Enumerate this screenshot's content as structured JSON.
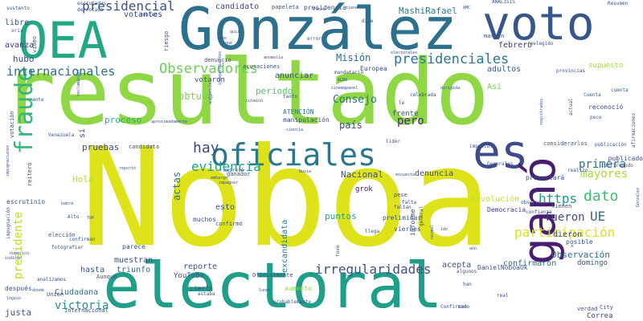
{
  "words": [
    {
      "text": "resultado",
      "color": "#8fd744"
    },
    {
      "text": "Noboa",
      "color": "#dde318"
    },
    {
      "text": "González",
      "color": "#2d708e"
    },
    {
      "text": "electoral",
      "color": "#1f9e89"
    },
    {
      "text": "OEA",
      "color": "#22a884"
    },
    {
      "text": "voto",
      "color": "#39568c"
    },
    {
      "text": "es",
      "color": "#3e4a89"
    },
    {
      "text": "ganó",
      "color": "#481f70"
    },
    {
      "text": "oficiales",
      "color": "#2a788e"
    },
    {
      "text": "fraude",
      "color": "#35b779"
    },
    {
      "text": "presidenciales",
      "color": "#2a788e"
    },
    {
      "text": "Observadores",
      "color": "#6ccd5a"
    },
    {
      "text": "internacionales",
      "color": "#2f6c8e"
    },
    {
      "text": "irregularidades",
      "color": "#3b528b"
    },
    {
      "text": "participación",
      "color": "#d8e219"
    },
    {
      "text": "presidencial",
      "color": "#3b528b"
    },
    {
      "text": "evidencia",
      "color": "#1fa088"
    },
    {
      "text": "hay",
      "color": "#3e4989"
    },
    {
      "text": "dato",
      "color": "#3dbc74"
    },
    {
      "text": "primera",
      "color": "#2c728e"
    },
    {
      "text": "https",
      "color": "#1f9a8a"
    },
    {
      "text": "mayores",
      "color": "#a8db34"
    },
    {
      "text": "UE",
      "color": "#31688e"
    },
    {
      "text": "presidente",
      "color": "#bddf26"
    },
    {
      "text": "actas",
      "color": "#2a788e"
    },
    {
      "text": "victoria",
      "color": "#21918c"
    },
    {
      "text": "fueron",
      "color": "#3e4a89"
    },
    {
      "text": "pero",
      "color": "#482878"
    },
    {
      "text": "Consejo",
      "color": "#2c728e"
    },
    {
      "text": "Misión",
      "color": "#31688e"
    },
    {
      "text": "MashiRafael",
      "color": "#2a788e"
    },
    {
      "text": "candidato",
      "color": "#404688"
    },
    {
      "text": "puntos",
      "color": "#20a386"
    },
    {
      "text": "Nacional",
      "color": "#3b528b"
    },
    {
      "text": "Observación",
      "color": "#2d708e"
    },
    {
      "text": "confirmaron",
      "color": "#2f6c8e"
    },
    {
      "text": "dieron",
      "color": "#414487"
    },
    {
      "text": "proceso",
      "color": "#29af7f"
    },
    {
      "text": "pruebas",
      "color": "#3f4889"
    },
    {
      "text": "país",
      "color": "#3e4989"
    },
    {
      "text": "hubo",
      "color": "#3e4989"
    },
    {
      "text": "libre",
      "color": "#3b528b"
    },
    {
      "text": "avanza",
      "color": "#46337e"
    },
    {
      "text": "votantes",
      "color": "#3e4a89"
    },
    {
      "text": "Hola",
      "color": "#b5de2b"
    },
    {
      "text": "febrero",
      "color": "#463480"
    },
    {
      "text": "adultos",
      "color": "#38598c"
    },
    {
      "text": "muestran",
      "color": "#3b528b"
    },
    {
      "text": "excandidata",
      "color": "#2a788e"
    },
    {
      "text": "denuncia",
      "color": "#3e4989"
    },
    {
      "text": "justa",
      "color": "#3b528b"
    },
    {
      "text": "hasta",
      "color": "#3b528b"
    },
    {
      "text": "triunfo",
      "color": "#31688e"
    },
    {
      "text": "Ciudadana",
      "color": "#2c728e"
    },
    {
      "text": "reporte",
      "color": "#3b528b"
    },
    {
      "text": "esto",
      "color": "#3b528b"
    },
    {
      "text": "si",
      "color": "#3e4989"
    },
    {
      "text": "obtuvo",
      "color": "#7ad151"
    },
    {
      "text": "periodo",
      "color": "#52c569"
    },
    {
      "text": "anunciar",
      "color": "#3b528b"
    },
    {
      "text": "votaron",
      "color": "#3b528b"
    },
    {
      "text": "grok",
      "color": "#481668"
    },
    {
      "text": "publicado",
      "color": "#3e4989"
    },
    {
      "text": "reconoció",
      "color": "#3e4989"
    },
    {
      "text": "Revolución",
      "color": "#bddf26"
    },
    {
      "text": "Democracia",
      "color": "#414487"
    },
    {
      "text": "ATENCIÓN",
      "color": "#2a788e"
    },
    {
      "text": "manipulación",
      "color": "#3e4a89"
    },
    {
      "text": "Así",
      "color": "#7ad151"
    },
    {
      "text": "Europea",
      "color": "#3b528b"
    },
    {
      "text": "supuesto",
      "color": "#a5db36"
    },
    {
      "text": "YouTube",
      "color": "#3b528b"
    },
    {
      "text": "cierto",
      "color": "#3b528b"
    },
    {
      "text": "aumento",
      "color": "#8fd744"
    },
    {
      "text": "Correa",
      "color": "#3e4989"
    },
    {
      "text": "acepta",
      "color": "#3b528b"
    },
    {
      "text": "domingo",
      "color": "#3b528b"
    },
    {
      "text": "DanielNoboaOk",
      "color": "#3b528b"
    },
    {
      "text": "frente",
      "color": "#3b528b"
    },
    {
      "text": "posible",
      "color": "#3b528b"
    },
    {
      "text": "elección",
      "color": "#3b528b"
    },
    {
      "text": "ganador",
      "color": "#3b528b"
    },
    {
      "text": "expresó",
      "color": "#3b528b"
    },
    {
      "text": "preliminar",
      "color": "#3b528b"
    },
    {
      "text": "viernes",
      "color": "#3b528b"
    },
    {
      "text": "informe",
      "color": "#3b528b"
    },
    {
      "text": "tienen",
      "color": "#3b528b"
    },
    {
      "text": "Aunque",
      "color": "#3b528b"
    },
    {
      "text": "parece",
      "color": "#3b528b"
    },
    {
      "text": "muchos",
      "color": "#3b528b"
    },
    {
      "text": "confirmó",
      "color": "#3b528b"
    },
    {
      "text": "escrutinio",
      "color": "#3b528b"
    },
    {
      "text": "después",
      "color": "#3b528b"
    },
    {
      "text": "Unión",
      "color": "#3b528b"
    },
    {
      "text": "internacional",
      "color": "#3b528b"
    },
    {
      "text": "verdad",
      "color": "#3b528b"
    },
    {
      "text": "City",
      "color": "#3b528b"
    },
    {
      "text": "votación",
      "color": "#3b528b"
    },
    {
      "text": "reiteró",
      "color": "#3b528b"
    },
    {
      "text": "denuncio",
      "color": "#3b528b"
    },
    {
      "text": "acusaciones",
      "color": "#3b528b"
    },
    {
      "text": "presidencia",
      "color": "#3b528b"
    },
    {
      "text": "papeleta",
      "color": "#3b528b"
    },
    {
      "text": "conteo",
      "color": "#3b528b"
    },
    {
      "text": "riesgo",
      "color": "#3b528b"
    },
    {
      "text": "sustento",
      "color": "#3b528b"
    },
    {
      "text": "tanto",
      "color": "#3b528b"
    },
    {
      "text": "mandatario",
      "color": "#3b528b"
    },
    {
      "text": "provincias",
      "color": "#3b528b"
    },
    {
      "text": "reelegido",
      "color": "#3b528b"
    },
    {
      "text": "margen",
      "color": "#3b528b"
    },
    {
      "text": "celebrada",
      "color": "#3b528b"
    },
    {
      "text": "considerarlos",
      "color": "#3b528b"
    },
    {
      "text": "publicación",
      "color": "#3b528b"
    },
    {
      "text": "confirmando",
      "color": "#3b528b"
    },
    {
      "text": "Generales",
      "color": "#3b528b"
    },
    {
      "text": "candidata",
      "color": "#3b528b"
    },
    {
      "text": "pese",
      "color": "#3b528b"
    },
    {
      "text": "confirman",
      "color": "#3b528b"
    },
    {
      "text": "falta",
      "color": "#3b528b"
    },
    {
      "text": "faltan",
      "color": "#3b528b"
    },
    {
      "text": "fotografiar",
      "color": "#3b528b"
    },
    {
      "text": "analizamos",
      "color": "#3b528b"
    },
    {
      "text": "Confirmado",
      "color": "#3b528b"
    },
    {
      "text": "cnn",
      "color": "#3b528b"
    },
    {
      "text": "probablemente",
      "color": "#3b528b"
    },
    {
      "text": "Oficialmente",
      "color": "#3b528b"
    },
    {
      "text": "estaba",
      "color": "#3b528b"
    },
    {
      "text": "algunos",
      "color": "#3b528b"
    },
    {
      "text": "llega",
      "color": "#3b528b"
    },
    {
      "text": "observó",
      "color": "#3b528b"
    },
    {
      "text": "confianza",
      "color": "#3b528b"
    },
    {
      "text": "presentará",
      "color": "#3b528b"
    },
    {
      "text": "realizo",
      "color": "#3b528b"
    },
    {
      "text": "Cuenta",
      "color": "#3b528b"
    },
    {
      "text": "cuenta",
      "color": "#3b528b"
    },
    {
      "text": "Resumen",
      "color": "#3b528b"
    },
    {
      "text": "ANÁLISIS",
      "color": "#3b528b"
    },
    {
      "text": "impagnar",
      "color": "#3b528b"
    },
    {
      "text": "embargo",
      "color": "#3b528b"
    },
    {
      "text": "reportó",
      "color": "#3b528b"
    },
    {
      "text": "Rusia",
      "color": "#3b528b"
    },
    {
      "text": "Venezuela",
      "color": "#3b528b"
    },
    {
      "text": "Alto",
      "color": "#3b528b"
    },
    {
      "text": "impugnación",
      "color": "#3b528b"
    },
    {
      "text": "culminó",
      "color": "#3b528b"
    },
    {
      "text": "Fecha",
      "color": "#3b528b"
    },
    {
      "text": "lunes",
      "color": "#3b528b"
    },
    {
      "text": "escrutadas",
      "color": "#3b528b"
    },
    {
      "text": "derrotada",
      "color": "#3b528b"
    },
    {
      "text": "dice",
      "color": "#3b528b"
    },
    {
      "text": "error",
      "color": "#3b528b"
    },
    {
      "text": "anomalía",
      "color": "#3b528b"
    },
    {
      "text": "aproximadamente",
      "color": "#3b528b"
    },
    {
      "text": "Gonzalez",
      "color": "#3b528b"
    },
    {
      "text": "real",
      "color": "#3b528b"
    },
    {
      "text": "general",
      "color": "#3b528b"
    },
    {
      "text": "tuvo",
      "color": "#3b528b"
    },
    {
      "text": "registrados",
      "color": "#3b528b"
    },
    {
      "text": "lider",
      "color": "#3b528b"
    },
    {
      "text": "han",
      "color": "#3b528b"
    },
    {
      "text": "ante",
      "color": "#3b528b"
    },
    {
      "text": "orix",
      "color": "#3b528b"
    },
    {
      "text": "ALBA",
      "color": "#3b528b"
    },
    {
      "text": "dirigida",
      "color": "#3b528b"
    },
    {
      "text": "afirmaciones",
      "color": "#3b528b"
    },
    {
      "text": "actual",
      "color": "#3b528b"
    },
    {
      "text": "electorales",
      "color": "#3b528b"
    },
    {
      "text": "AMC",
      "color": "#3b528b"
    },
    {
      "text": "tiene",
      "color": "#3b528b"
    },
    {
      "text": "quiz",
      "color": "#3b528b"
    },
    {
      "text": "video",
      "color": "#3b528b"
    },
    {
      "text": "sino",
      "color": "#3b528b"
    },
    {
      "text": "ciencia",
      "color": "#3b528b"
    },
    {
      "text": "poco",
      "color": "#3b528b"
    },
    {
      "text": "habrá",
      "color": "#3b528b"
    },
    {
      "text": "impugnaciones",
      "color": "#3b528b"
    },
    {
      "text": "cinemápanel",
      "color": "#3b528b"
    },
    {
      "text": "reclamación",
      "color": "#3b528b"
    },
    {
      "text": "independientes",
      "color": "#3b528b"
    },
    {
      "text": "audiencia",
      "color": "#3b528b"
    },
    {
      "text": "encuesta",
      "color": "#3b528b"
    },
    {
      "text": "imposible",
      "color": "#3b528b"
    },
    {
      "text": "lógico",
      "color": "#3b528b"
    },
    {
      "text": "donde",
      "color": "#3b528b"
    },
    {
      "text": "indican",
      "color": "#3b528b"
    },
    {
      "text": "numérico",
      "color": "#3b528b"
    },
    {
      "text": "normal",
      "color": "#3b528b"
    },
    {
      "text": "qué",
      "color": "#3b528b"
    },
    {
      "text": "TOP",
      "color": "#3b528b"
    },
    {
      "text": "x",
      "color": "#3b528b"
    },
    {
      "text": "le",
      "color": "#3b528b"
    },
    {
      "text": "aún",
      "color": "#3b528b"
    },
    {
      "text": "ido",
      "color": "#3b528b"
    }
  ]
}
